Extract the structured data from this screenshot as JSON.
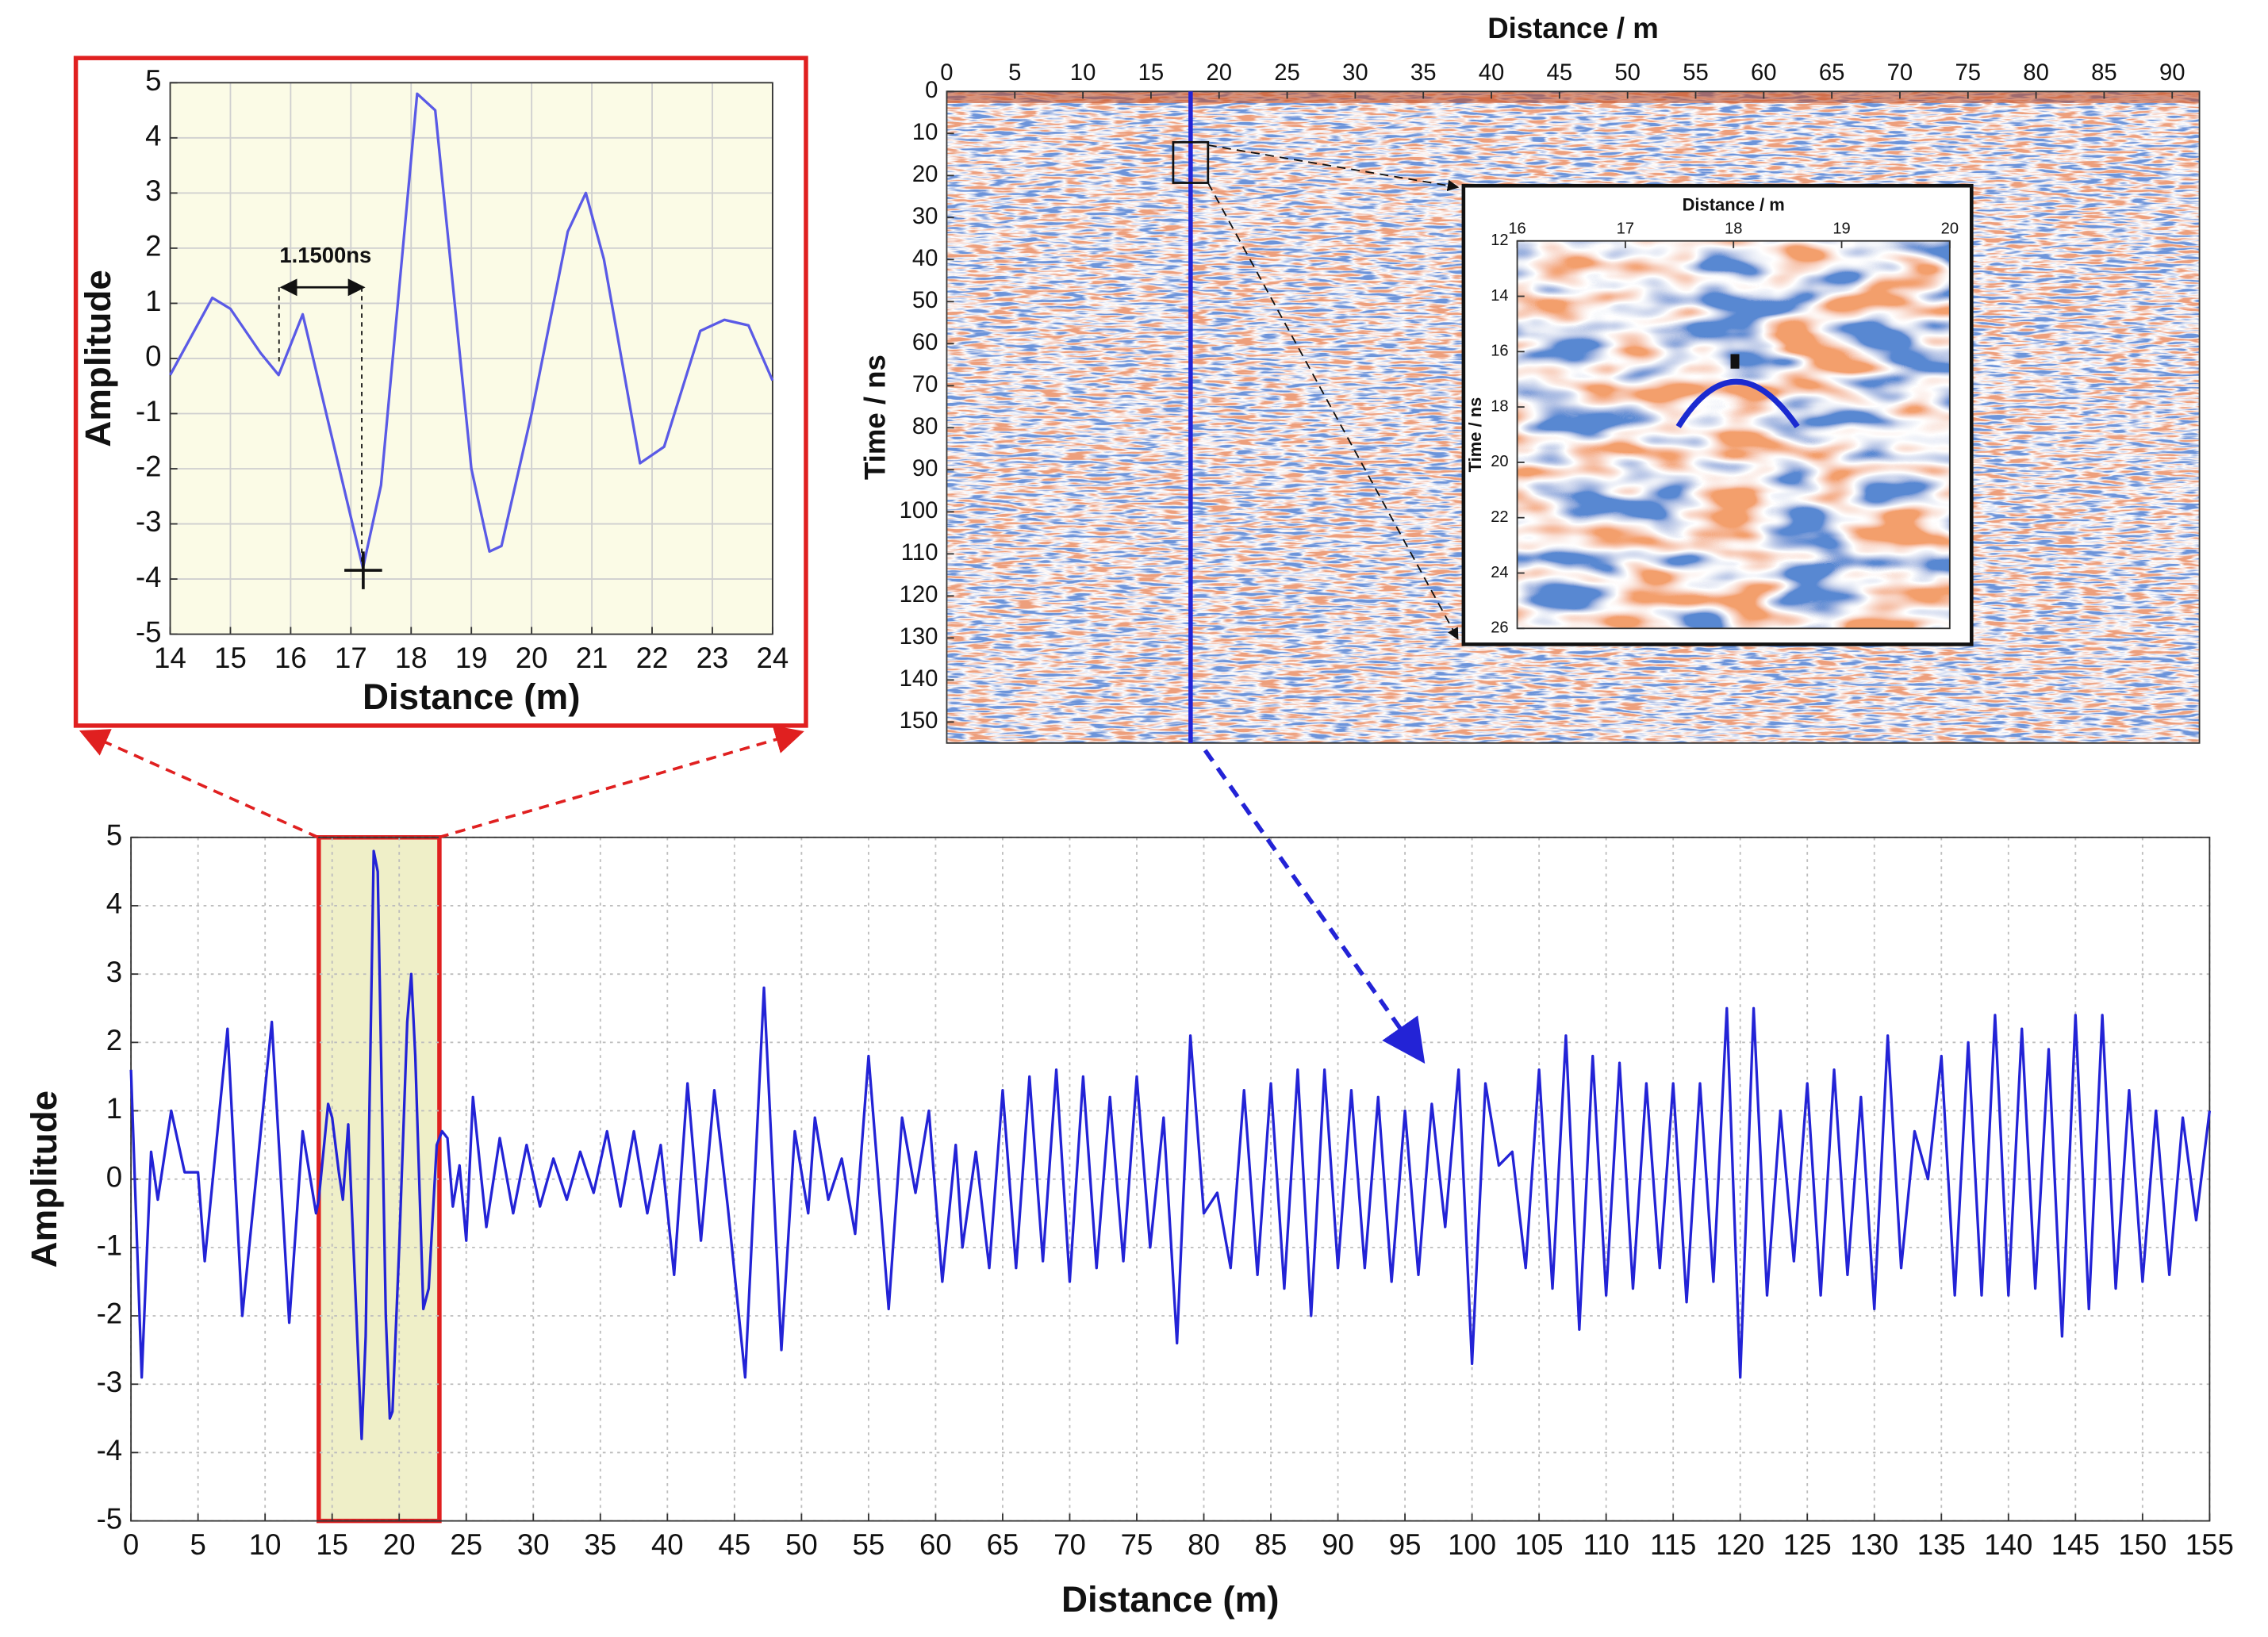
{
  "chart_data": [
    {
      "type": "line",
      "xlabel": "Distance (m)",
      "ylabel": "Amplitude",
      "x": [
        14,
        14.7,
        15,
        15.5,
        15.8,
        16.2,
        17.2,
        17.5,
        18.1,
        18.4,
        19,
        19.3,
        19.5,
        20,
        20.6,
        20.9,
        21.2,
        21.8,
        22.2,
        22.8,
        23.2,
        23.6,
        24
      ],
      "series": [
        {
          "color": "#5a5ae6",
          "values": [
            -0.3,
            1.1,
            0.9,
            0.1,
            -0.3,
            0.8,
            -3.8,
            -2.3,
            4.8,
            4.5,
            -2,
            -3.5,
            -3.4,
            -1,
            2.3,
            3.0,
            1.8,
            -1.9,
            -1.6,
            0.5,
            0.7,
            0.6,
            -0.4
          ]
        }
      ],
      "xlim": [
        14,
        24
      ],
      "xticks": [
        14,
        15,
        16,
        17,
        18,
        19,
        20,
        21,
        22,
        23,
        24
      ],
      "ylim": [
        -5,
        5
      ],
      "yticks": [
        -5,
        -4,
        -3,
        -2,
        -1,
        0,
        1,
        2,
        3,
        4,
        5
      ],
      "grid": true,
      "background": "#fbfbe6",
      "frame_color": "#e02020",
      "annotations": [
        {
          "text": "1.1500ns"
        }
      ]
    },
    {
      "type": "heatmap",
      "xlabel": "Distance / m",
      "ylabel": "Time / ns",
      "xlim": [
        0,
        92
      ],
      "xticks": [
        0,
        5,
        10,
        15,
        20,
        25,
        30,
        35,
        40,
        45,
        50,
        55,
        60,
        65,
        70,
        75,
        80,
        85,
        90
      ],
      "ylim": [
        0,
        155
      ],
      "yticks": [
        0,
        10,
        20,
        30,
        40,
        50,
        60,
        70,
        80,
        90,
        100,
        110,
        120,
        130,
        140,
        150
      ],
      "y_reversed": true,
      "inset": {
        "xlabel": "Distance / m",
        "ylabel": "Time / ns",
        "xlim": [
          16,
          20
        ],
        "xticks": [
          16,
          17,
          18,
          19,
          20
        ],
        "ylim": [
          12,
          26
        ],
        "yticks": [
          12,
          14,
          16,
          18,
          20,
          22,
          24,
          26
        ],
        "y_reversed": true
      }
    },
    {
      "type": "line",
      "xlabel": "Distance (m)",
      "ylabel": "Amplitude",
      "x": [
        0,
        0.8,
        1.5,
        2,
        3,
        4,
        5,
        5.5,
        7.2,
        8.3,
        10.5,
        11.8,
        12.8,
        13.8,
        14,
        14.7,
        15,
        15.5,
        15.8,
        16.2,
        17.2,
        17.5,
        18.1,
        18.4,
        19,
        19.3,
        19.5,
        20,
        20.6,
        20.9,
        21.2,
        21.8,
        22.2,
        22.8,
        23.2,
        23.6,
        24,
        24.5,
        25,
        25.5,
        26.5,
        27.5,
        28.5,
        29.5,
        30.5,
        31.5,
        32.5,
        33.5,
        34.5,
        35.5,
        36.5,
        37.5,
        38.5,
        39.5,
        40.5,
        41.5,
        42.5,
        43.5,
        44.5,
        45.8,
        47.2,
        48.5,
        49.5,
        50.5,
        51,
        52,
        53,
        54,
        55,
        56.5,
        57.5,
        58.5,
        59.5,
        60.5,
        61.5,
        62,
        63,
        64,
        65,
        66,
        67,
        68,
        69,
        70,
        71,
        72,
        73,
        74,
        75,
        76,
        77,
        78,
        79,
        80,
        81,
        82,
        83,
        84,
        85,
        86,
        87,
        88,
        89,
        90,
        91,
        92,
        93,
        94,
        95,
        96,
        97,
        98,
        99,
        100,
        101,
        102,
        103,
        104,
        105,
        106,
        107,
        108,
        109,
        110,
        111,
        112,
        113,
        114,
        115,
        116,
        117,
        118,
        119,
        120,
        121,
        122,
        123,
        124,
        125,
        126,
        127,
        128,
        129,
        130,
        131,
        132,
        133,
        134,
        135,
        136,
        137,
        138,
        139,
        140,
        141,
        142,
        143,
        144,
        145,
        146,
        147,
        148,
        149,
        150,
        151,
        152,
        153,
        154,
        155
      ],
      "series": [
        {
          "color": "#2323d6",
          "values": [
            1.6,
            -2.9,
            0.4,
            -0.3,
            1.0,
            0.1,
            0.1,
            -1.2,
            2.2,
            -2.0,
            2.3,
            -2.1,
            0.7,
            -0.5,
            -0.3,
            1.1,
            0.9,
            0.1,
            -0.3,
            0.8,
            -3.8,
            -2.3,
            4.8,
            4.5,
            -2,
            -3.5,
            -3.4,
            -1,
            2.3,
            3.0,
            1.8,
            -1.9,
            -1.6,
            0.5,
            0.7,
            0.6,
            -0.4,
            0.2,
            -0.9,
            1.2,
            -0.7,
            0.6,
            -0.5,
            0.5,
            -0.4,
            0.3,
            -0.3,
            0.4,
            -0.2,
            0.7,
            -0.4,
            0.7,
            -0.5,
            0.5,
            -1.4,
            1.4,
            -0.9,
            1.3,
            -0.4,
            -2.9,
            2.8,
            -2.5,
            0.7,
            -0.5,
            0.9,
            -0.3,
            0.3,
            -0.8,
            1.8,
            -1.9,
            0.9,
            -0.2,
            1.0,
            -1.5,
            0.5,
            -1.0,
            0.4,
            -1.3,
            1.3,
            -1.3,
            1.5,
            -1.2,
            1.6,
            -1.5,
            1.5,
            -1.3,
            1.2,
            -1.2,
            1.5,
            -1.0,
            0.9,
            -2.4,
            2.1,
            -0.5,
            -0.2,
            -1.3,
            1.3,
            -1.4,
            1.4,
            -1.6,
            1.6,
            -2.0,
            1.6,
            -1.3,
            1.3,
            -1.3,
            1.2,
            -1.5,
            1.0,
            -1.4,
            1.1,
            -0.7,
            1.6,
            -2.7,
            1.4,
            0.2,
            0.4,
            -1.3,
            1.6,
            -1.6,
            2.1,
            -2.2,
            1.8,
            -1.7,
            1.7,
            -1.6,
            1.4,
            -1.3,
            1.4,
            -1.8,
            1.4,
            -1.5,
            2.5,
            -2.9,
            2.5,
            -1.7,
            1.0,
            -1.2,
            1.4,
            -1.7,
            1.6,
            -1.4,
            1.2,
            -1.9,
            2.1,
            -1.3,
            0.7,
            0.0,
            1.8,
            -1.7,
            2.0,
            -1.7,
            2.4,
            -1.7,
            2.2,
            -1.6,
            1.9,
            -2.3,
            2.4,
            -1.9,
            2.4,
            -1.6,
            1.3,
            -1.5,
            1.0,
            -1.4,
            0.9,
            -0.6,
            1.0
          ]
        }
      ],
      "xlim": [
        0,
        155
      ],
      "xticks": [
        0,
        5,
        10,
        15,
        20,
        25,
        30,
        35,
        40,
        45,
        50,
        55,
        60,
        65,
        70,
        75,
        80,
        85,
        90,
        95,
        100,
        105,
        110,
        115,
        120,
        125,
        130,
        135,
        140,
        145,
        150,
        155
      ],
      "ylim": [
        -5,
        5
      ],
      "yticks": [
        -5,
        -4,
        -3,
        -2,
        -1,
        0,
        1,
        2,
        3,
        4,
        5
      ],
      "grid": true,
      "highlight": [
        14,
        23
      ],
      "highlight_color": "#e02020"
    }
  ]
}
